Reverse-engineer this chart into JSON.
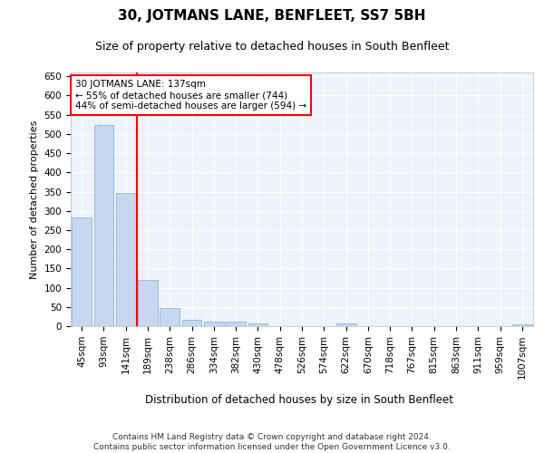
{
  "title": "30, JOTMANS LANE, BENFLEET, SS7 5BH",
  "subtitle": "Size of property relative to detached houses in South Benfleet",
  "xlabel": "Distribution of detached houses by size in South Benfleet",
  "ylabel": "Number of detached properties",
  "bar_labels": [
    "45sqm",
    "93sqm",
    "141sqm",
    "189sqm",
    "238sqm",
    "286sqm",
    "334sqm",
    "382sqm",
    "430sqm",
    "478sqm",
    "526sqm",
    "574sqm",
    "622sqm",
    "670sqm",
    "718sqm",
    "767sqm",
    "815sqm",
    "863sqm",
    "911sqm",
    "959sqm",
    "1007sqm"
  ],
  "bar_values": [
    283,
    524,
    347,
    120,
    48,
    16,
    12,
    11,
    7,
    0,
    0,
    0,
    6,
    0,
    0,
    0,
    0,
    0,
    0,
    0,
    5
  ],
  "bar_color": "#c5d8f0",
  "bar_edge_color": "#7aadd4",
  "vline_x_index": 2,
  "vline_color": "red",
  "ylim": [
    0,
    660
  ],
  "yticks": [
    0,
    50,
    100,
    150,
    200,
    250,
    300,
    350,
    400,
    450,
    500,
    550,
    600,
    650
  ],
  "annotation_text": "30 JOTMANS LANE: 137sqm\n← 55% of detached houses are smaller (744)\n44% of semi-detached houses are larger (594) →",
  "annotation_box_color": "white",
  "annotation_box_edge": "red",
  "footer_text": "Contains HM Land Registry data © Crown copyright and database right 2024.\nContains public sector information licensed under the Open Government Licence v3.0.",
  "bg_color": "#eef2fa",
  "grid_color": "white",
  "title_fontsize": 11,
  "subtitle_fontsize": 9,
  "xlabel_fontsize": 8.5,
  "ylabel_fontsize": 8,
  "tick_fontsize": 7.5,
  "footer_fontsize": 6.5
}
